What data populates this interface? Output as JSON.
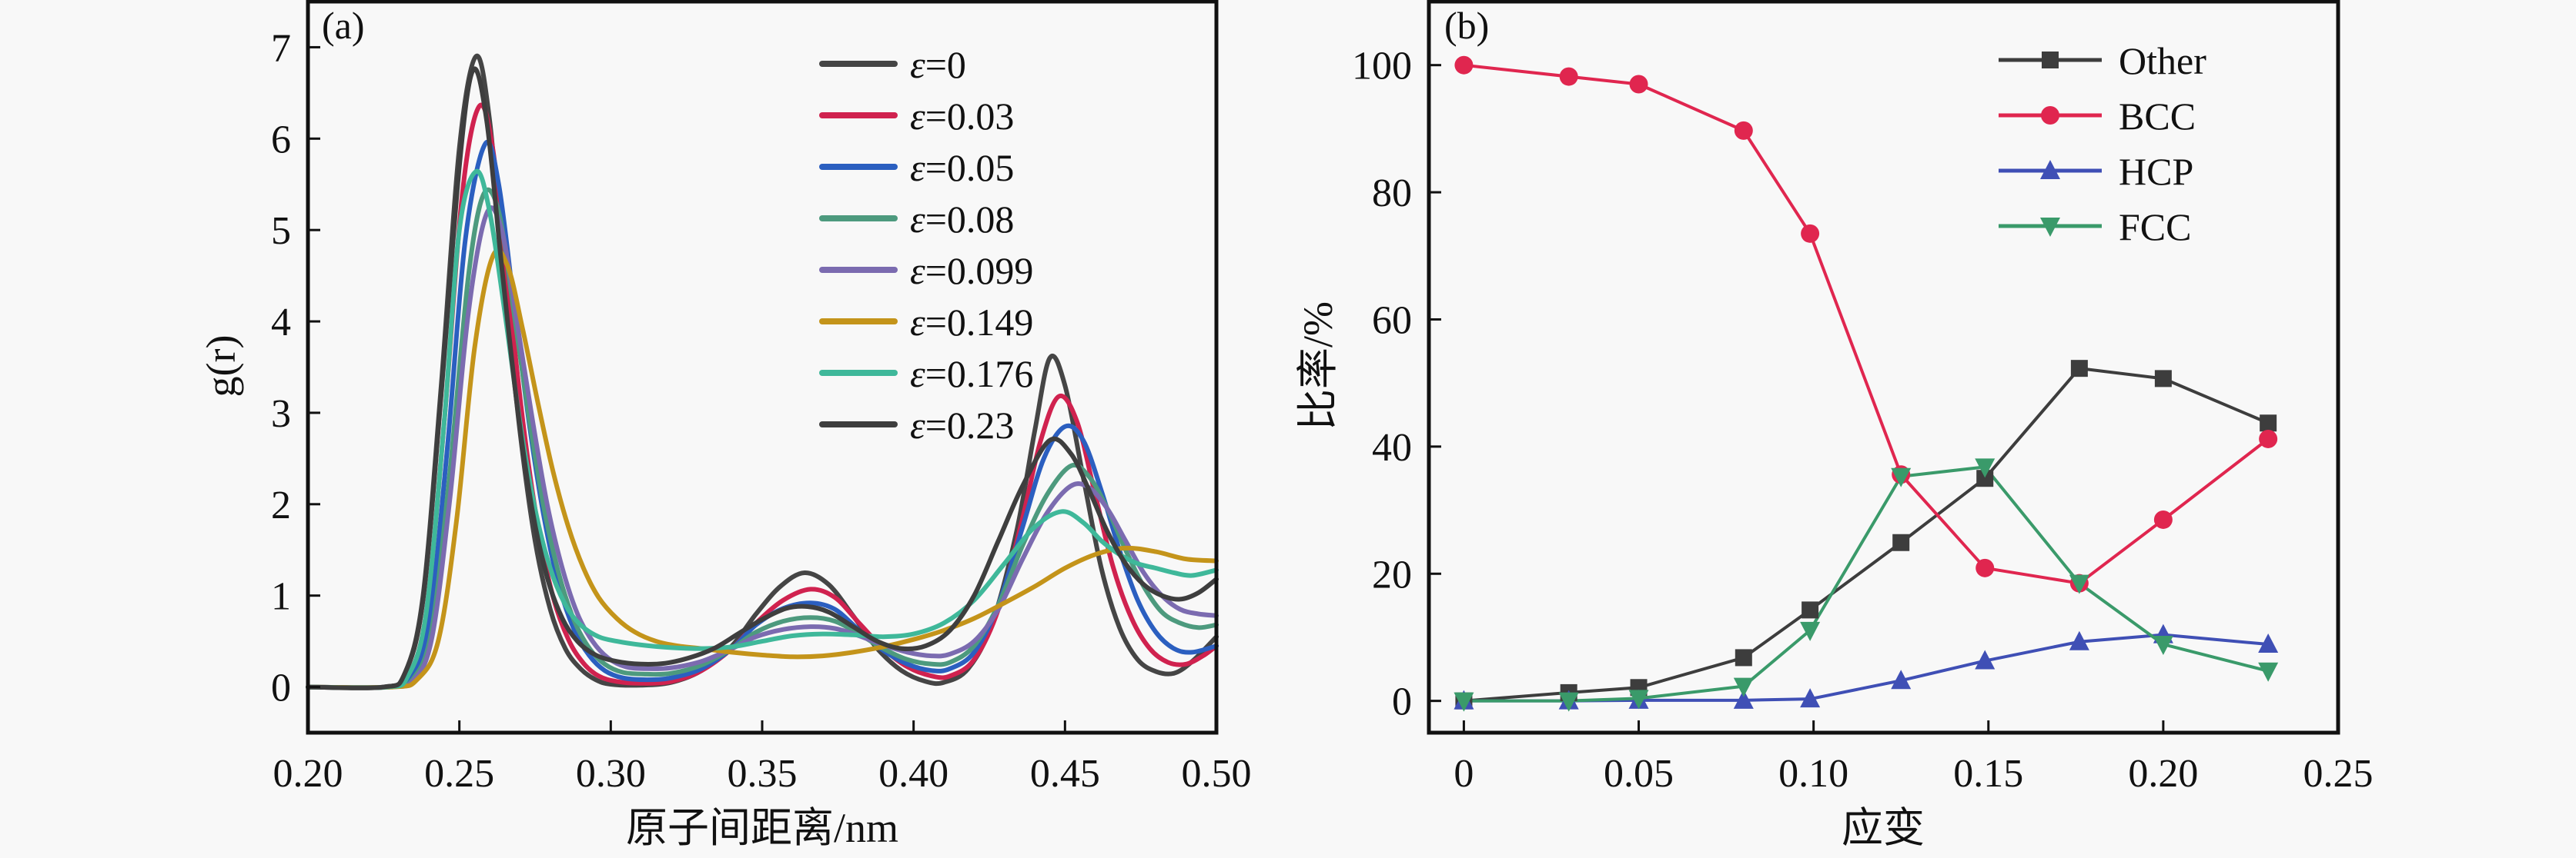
{
  "chart_data": [
    {
      "type": "line",
      "panel_label": "(a)",
      "title": "",
      "xlabel": "原子间距离/nm",
      "ylabel": "g(r)",
      "xlim": [
        0.2,
        0.5
      ],
      "ylim": [
        -0.5,
        7.5
      ],
      "xticks": [
        0.2,
        0.25,
        0.3,
        0.35,
        0.4,
        0.45,
        0.5
      ],
      "xtick_labels": [
        "0.20",
        "0.25",
        "0.30",
        "0.35",
        "0.40",
        "0.45",
        "0.50"
      ],
      "yticks": [
        0,
        1,
        2,
        3,
        4,
        5,
        6,
        7
      ],
      "ytick_labels": [
        "0",
        "1",
        "2",
        "3",
        "4",
        "5",
        "6",
        "7"
      ],
      "grid": false,
      "legend_position": "top-right",
      "series": [
        {
          "name": "ε=0",
          "symbol": "ε",
          "value_label": "=0",
          "color": "#454545",
          "x": [
            0.2,
            0.225,
            0.232,
            0.238,
            0.244,
            0.25,
            0.2555,
            0.26,
            0.265,
            0.27,
            0.275,
            0.28,
            0.285,
            0.29,
            0.295,
            0.3,
            0.31,
            0.32,
            0.33,
            0.34,
            0.348,
            0.356,
            0.364,
            0.372,
            0.38,
            0.388,
            0.396,
            0.404,
            0.41,
            0.418,
            0.426,
            0.434,
            0.44,
            0.445,
            0.45,
            0.456,
            0.462,
            0.468,
            0.474,
            0.48,
            0.486,
            0.492,
            0.5
          ],
          "y": [
            0,
            0,
            0.15,
            1.0,
            3.3,
            5.9,
            6.9,
            6.2,
            4.4,
            2.8,
            1.6,
            0.85,
            0.42,
            0.2,
            0.08,
            0.03,
            0.02,
            0.05,
            0.18,
            0.45,
            0.8,
            1.1,
            1.25,
            1.12,
            0.78,
            0.42,
            0.18,
            0.06,
            0.05,
            0.2,
            0.7,
            1.7,
            2.8,
            3.6,
            3.3,
            2.3,
            1.3,
            0.65,
            0.3,
            0.17,
            0.15,
            0.28,
            0.55
          ]
        },
        {
          "name": "ε=0.03",
          "symbol": "ε",
          "value_label": "=0.03",
          "color": "#d0224f",
          "x": [
            0.2,
            0.226,
            0.233,
            0.239,
            0.245,
            0.251,
            0.2565,
            0.261,
            0.266,
            0.271,
            0.276,
            0.281,
            0.286,
            0.291,
            0.296,
            0.302,
            0.31,
            0.32,
            0.33,
            0.34,
            0.348,
            0.357,
            0.366,
            0.374,
            0.382,
            0.39,
            0.398,
            0.406,
            0.412,
            0.42,
            0.428,
            0.436,
            0.442,
            0.448,
            0.454,
            0.46,
            0.466,
            0.472,
            0.478,
            0.484,
            0.49,
            0.496,
            0.5
          ],
          "y": [
            0,
            0,
            0.12,
            0.8,
            2.9,
            5.4,
            6.35,
            5.9,
            4.4,
            2.9,
            1.75,
            0.98,
            0.52,
            0.26,
            0.12,
            0.06,
            0.04,
            0.06,
            0.18,
            0.42,
            0.7,
            0.95,
            1.07,
            0.98,
            0.7,
            0.42,
            0.22,
            0.12,
            0.12,
            0.3,
            0.85,
            1.85,
            2.7,
            3.18,
            2.9,
            2.1,
            1.3,
            0.75,
            0.42,
            0.27,
            0.25,
            0.35,
            0.45
          ]
        },
        {
          "name": "ε=0.05",
          "symbol": "ε",
          "value_label": "=0.05",
          "color": "#2b5fc0",
          "x": [
            0.2,
            0.226,
            0.234,
            0.24,
            0.246,
            0.252,
            0.2585,
            0.263,
            0.268,
            0.273,
            0.278,
            0.283,
            0.288,
            0.293,
            0.298,
            0.304,
            0.312,
            0.32,
            0.33,
            0.34,
            0.348,
            0.357,
            0.366,
            0.374,
            0.382,
            0.39,
            0.398,
            0.406,
            0.412,
            0.42,
            0.428,
            0.436,
            0.443,
            0.45,
            0.456,
            0.462,
            0.468,
            0.474,
            0.48,
            0.486,
            0.492,
            0.5
          ],
          "y": [
            0,
            0,
            0.1,
            0.7,
            2.6,
            4.9,
            5.94,
            5.5,
            4.2,
            2.9,
            1.85,
            1.1,
            0.62,
            0.34,
            0.18,
            0.1,
            0.08,
            0.1,
            0.2,
            0.42,
            0.68,
            0.86,
            0.92,
            0.85,
            0.62,
            0.4,
            0.25,
            0.18,
            0.2,
            0.38,
            0.9,
            1.75,
            2.5,
            2.85,
            2.7,
            2.15,
            1.5,
            0.95,
            0.6,
            0.42,
            0.38,
            0.45
          ]
        },
        {
          "name": "ε=0.08",
          "symbol": "ε",
          "value_label": "=0.08",
          "color": "#4d9a7e",
          "x": [
            0.2,
            0.227,
            0.235,
            0.241,
            0.247,
            0.253,
            0.258,
            0.263,
            0.268,
            0.273,
            0.278,
            0.283,
            0.288,
            0.293,
            0.298,
            0.304,
            0.312,
            0.32,
            0.33,
            0.34,
            0.348,
            0.357,
            0.366,
            0.374,
            0.382,
            0.39,
            0.398,
            0.406,
            0.412,
            0.42,
            0.428,
            0.436,
            0.444,
            0.452,
            0.458,
            0.464,
            0.47,
            0.476,
            0.482,
            0.488,
            0.494,
            0.5
          ],
          "y": [
            0,
            0,
            0.1,
            0.65,
            2.4,
            4.5,
            5.39,
            5.2,
            4.1,
            2.95,
            1.95,
            1.22,
            0.72,
            0.42,
            0.25,
            0.16,
            0.14,
            0.15,
            0.24,
            0.42,
            0.6,
            0.72,
            0.76,
            0.72,
            0.58,
            0.42,
            0.3,
            0.25,
            0.27,
            0.45,
            0.9,
            1.55,
            2.1,
            2.42,
            2.3,
            1.95,
            1.5,
            1.1,
            0.82,
            0.7,
            0.65,
            0.68
          ]
        },
        {
          "name": "ε=0.099",
          "symbol": "ε",
          "value_label": "=0.099",
          "color": "#7b6bb0",
          "x": [
            0.2,
            0.227,
            0.235,
            0.241,
            0.247,
            0.253,
            0.259,
            0.264,
            0.269,
            0.274,
            0.279,
            0.284,
            0.289,
            0.294,
            0.299,
            0.305,
            0.312,
            0.32,
            0.33,
            0.34,
            0.348,
            0.357,
            0.366,
            0.374,
            0.382,
            0.39,
            0.398,
            0.406,
            0.412,
            0.42,
            0.428,
            0.436,
            0.444,
            0.452,
            0.458,
            0.464,
            0.47,
            0.476,
            0.482,
            0.488,
            0.494,
            0.5
          ],
          "y": [
            0,
            0,
            0.08,
            0.55,
            2.1,
            4.1,
            5.18,
            5.0,
            4.0,
            2.95,
            2.0,
            1.3,
            0.8,
            0.5,
            0.32,
            0.22,
            0.2,
            0.21,
            0.28,
            0.42,
            0.55,
            0.63,
            0.66,
            0.64,
            0.56,
            0.46,
            0.38,
            0.34,
            0.36,
            0.5,
            0.85,
            1.4,
            1.9,
            2.2,
            2.18,
            1.95,
            1.6,
            1.25,
            1.0,
            0.85,
            0.8,
            0.78
          ]
        },
        {
          "name": "ε=0.149",
          "symbol": "ε",
          "value_label": "=0.149",
          "color": "#c4941a",
          "x": [
            0.2,
            0.228,
            0.236,
            0.243,
            0.249,
            0.255,
            0.261,
            0.266,
            0.271,
            0.276,
            0.281,
            0.286,
            0.291,
            0.296,
            0.302,
            0.308,
            0.315,
            0.322,
            0.33,
            0.34,
            0.35,
            0.36,
            0.37,
            0.38,
            0.39,
            0.4,
            0.41,
            0.42,
            0.43,
            0.44,
            0.45,
            0.46,
            0.47,
            0.48,
            0.49,
            0.5
          ],
          "y": [
            0,
            0,
            0.08,
            0.5,
            1.8,
            3.7,
            4.71,
            4.6,
            3.9,
            3.1,
            2.35,
            1.75,
            1.3,
            0.98,
            0.75,
            0.6,
            0.5,
            0.45,
            0.42,
            0.38,
            0.35,
            0.33,
            0.34,
            0.38,
            0.44,
            0.52,
            0.62,
            0.75,
            0.92,
            1.1,
            1.3,
            1.45,
            1.52,
            1.48,
            1.4,
            1.38
          ]
        },
        {
          "name": "ε=0.176",
          "symbol": "ε",
          "value_label": "=0.176",
          "color": "#3fb89a",
          "x": [
            0.2,
            0.226,
            0.233,
            0.239,
            0.245,
            0.25,
            0.2555,
            0.26,
            0.265,
            0.27,
            0.275,
            0.28,
            0.285,
            0.29,
            0.296,
            0.302,
            0.31,
            0.32,
            0.33,
            0.34,
            0.35,
            0.36,
            0.37,
            0.38,
            0.39,
            0.4,
            0.41,
            0.42,
            0.43,
            0.44,
            0.449,
            0.456,
            0.462,
            0.468,
            0.474,
            0.48,
            0.486,
            0.492,
            0.5
          ],
          "y": [
            0,
            0,
            0.12,
            0.8,
            2.9,
            5.0,
            5.64,
            5.2,
            4.1,
            2.9,
            1.95,
            1.3,
            0.9,
            0.68,
            0.55,
            0.5,
            0.46,
            0.43,
            0.42,
            0.44,
            0.5,
            0.56,
            0.58,
            0.57,
            0.55,
            0.58,
            0.7,
            0.95,
            1.35,
            1.75,
            1.92,
            1.8,
            1.6,
            1.45,
            1.35,
            1.3,
            1.25,
            1.22,
            1.28
          ]
        },
        {
          "name": "ε=0.23",
          "symbol": "ε",
          "value_label": "=0.23",
          "color": "#3e3e3e",
          "x": [
            0.2,
            0.225,
            0.232,
            0.238,
            0.244,
            0.25,
            0.2545,
            0.259,
            0.264,
            0.269,
            0.274,
            0.279,
            0.284,
            0.289,
            0.295,
            0.302,
            0.31,
            0.318,
            0.326,
            0.334,
            0.342,
            0.35,
            0.358,
            0.365,
            0.372,
            0.38,
            0.388,
            0.396,
            0.404,
            0.412,
            0.42,
            0.428,
            0.436,
            0.445,
            0.452,
            0.458,
            0.464,
            0.47,
            0.476,
            0.482,
            0.488,
            0.494,
            0.5
          ],
          "y": [
            0,
            0,
            0.15,
            0.95,
            3.2,
            5.7,
            6.75,
            6.2,
            4.6,
            3.1,
            1.95,
            1.2,
            0.75,
            0.5,
            0.35,
            0.28,
            0.25,
            0.26,
            0.32,
            0.42,
            0.58,
            0.74,
            0.86,
            0.88,
            0.82,
            0.66,
            0.5,
            0.42,
            0.45,
            0.62,
            1.0,
            1.6,
            2.2,
            2.7,
            2.55,
            2.15,
            1.7,
            1.35,
            1.12,
            1.0,
            0.96,
            1.03,
            1.18
          ]
        }
      ]
    },
    {
      "type": "line",
      "panel_label": "(b)",
      "title": "",
      "xlabel": "应变",
      "ylabel": "比率/%",
      "xlim": [
        -0.01,
        0.25
      ],
      "ylim": [
        -5,
        110
      ],
      "xticks": [
        0,
        0.05,
        0.1,
        0.15,
        0.2,
        0.25
      ],
      "xtick_labels": [
        "0",
        "0.05",
        "0.10",
        "0.15",
        "0.20",
        "0.25"
      ],
      "yticks": [
        0,
        20,
        40,
        60,
        80,
        100
      ],
      "ytick_labels": [
        "0",
        "20",
        "40",
        "60",
        "80",
        "100"
      ],
      "grid": false,
      "legend_position": "top-right",
      "x": [
        0,
        0.03,
        0.05,
        0.08,
        0.099,
        0.125,
        0.149,
        0.176,
        0.2,
        0.23
      ],
      "series": [
        {
          "name": "Other",
          "marker": "square",
          "color": "#3d3d3d",
          "values": [
            0,
            1.3,
            2.1,
            6.8,
            14.3,
            24.9,
            35.0,
            52.3,
            50.7,
            43.7
          ]
        },
        {
          "name": "BCC",
          "marker": "circle",
          "color": "#e0264f",
          "values": [
            100,
            98.2,
            97.0,
            89.7,
            73.5,
            35.6,
            20.9,
            18.5,
            28.5,
            41.2
          ]
        },
        {
          "name": "HCP",
          "marker": "triangle-up",
          "color": "#3f4fb5",
          "values": [
            0,
            0,
            0.1,
            0.1,
            0.3,
            3.2,
            6.3,
            9.3,
            10.4,
            8.9
          ]
        },
        {
          "name": "FCC",
          "marker": "triangle-down",
          "color": "#3a9a6a",
          "values": [
            0,
            0,
            0.4,
            2.3,
            11.1,
            35.3,
            36.8,
            18.5,
            8.9,
            4.7
          ]
        }
      ]
    }
  ]
}
